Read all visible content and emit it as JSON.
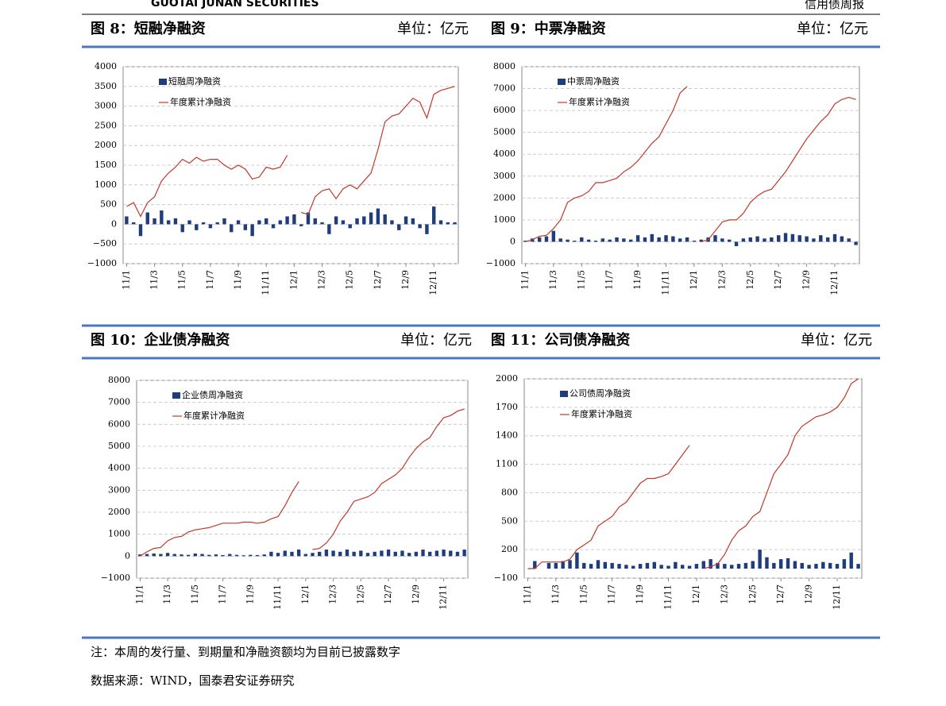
{
  "header": {
    "company": "GUOTAI JUNAN SECURITIES",
    "report": "信用债周报"
  },
  "chart_data": [
    {
      "type": "bar-line",
      "title": "图 8：短融净融资",
      "unit": "单位：亿元",
      "categories": [
        "11/1",
        null,
        null,
        null,
        "11/3",
        null,
        null,
        null,
        "11/5",
        null,
        null,
        null,
        "11/7",
        null,
        null,
        null,
        "11/9",
        null,
        null,
        null,
        "11/11",
        null,
        null,
        null,
        "12/1",
        null,
        null,
        null,
        "12/3",
        null,
        null,
        null,
        "12/5",
        null,
        null,
        null,
        "12/7",
        null,
        null,
        null,
        "12/9",
        null,
        null,
        null,
        "12/11",
        null,
        null,
        null
      ],
      "series": [
        {
          "name": "短融周净融资",
          "color": "#1f3d7a",
          "values": [
            200,
            50,
            -300,
            300,
            150,
            350,
            100,
            150,
            -200,
            100,
            -150,
            50,
            -100,
            50,
            150,
            -200,
            100,
            -150,
            -300,
            100,
            150,
            -100,
            100,
            200,
            250,
            -50,
            300,
            150,
            50,
            -250,
            200,
            100,
            -100,
            150,
            200,
            300,
            400,
            250,
            100,
            -150,
            200,
            150,
            -100,
            -250,
            450,
            100,
            50,
            50
          ]
        },
        {
          "name": "年度累计净融资",
          "color": "#c0392b",
          "values": [
            450,
            550,
            200,
            550,
            700,
            1100,
            1300,
            1450,
            1650,
            1550,
            1700,
            1600,
            1650,
            1650,
            1500,
            1400,
            1500,
            1400,
            1150,
            1200,
            1450,
            1400,
            1450,
            1750,
            null,
            300,
            250,
            700,
            850,
            900,
            650,
            900,
            1000,
            900,
            1100,
            1300,
            1900,
            2600,
            2750,
            2800,
            3000,
            3200,
            3100,
            2700,
            3300,
            3400,
            3450,
            3500
          ]
        }
      ],
      "ylim": [
        -1000,
        4000
      ],
      "yticks": [
        {
          "value": -1000,
          "label": "−1000"
        },
        {
          "value": -500,
          "label": "−500"
        },
        0,
        500,
        1000,
        1500,
        2000,
        2500,
        3000,
        3500,
        4000
      ],
      "grid": true
    },
    {
      "type": "bar-line",
      "title": "图 9：中票净融资",
      "unit": "单位：亿元",
      "categories": [
        "11/1",
        null,
        null,
        null,
        "11/3",
        null,
        null,
        null,
        "11/5",
        null,
        null,
        null,
        "11/7",
        null,
        null,
        null,
        "11/9",
        null,
        null,
        null,
        "11/11",
        null,
        null,
        null,
        "12/1",
        null,
        null,
        null,
        "12/3",
        null,
        null,
        null,
        "12/5",
        null,
        null,
        null,
        "12/7",
        null,
        null,
        null,
        "12/9",
        null,
        null,
        null,
        "12/11",
        null,
        null,
        null
      ],
      "series": [
        {
          "name": "中票周净融资",
          "color": "#1f3d7a",
          "values": [
            50,
            150,
            200,
            250,
            500,
            150,
            100,
            50,
            200,
            100,
            50,
            150,
            100,
            200,
            150,
            100,
            300,
            200,
            350,
            200,
            300,
            250,
            150,
            200,
            50,
            100,
            200,
            300,
            150,
            100,
            -200,
            150,
            200,
            250,
            150,
            200,
            300,
            400,
            350,
            300,
            250,
            150,
            300,
            200,
            350,
            250,
            150,
            -150
          ]
        },
        {
          "name": "年度累计净融资",
          "color": "#c0392b",
          "values": [
            0,
            100,
            250,
            300,
            600,
            1000,
            1800,
            2000,
            2100,
            2300,
            2700,
            2700,
            2800,
            2900,
            3200,
            3400,
            3700,
            4100,
            4500,
            4800,
            5400,
            6000,
            6800,
            7100,
            null,
            0,
            100,
            500,
            900,
            1000,
            1000,
            1300,
            1800,
            2100,
            2300,
            2400,
            2800,
            3200,
            3700,
            4200,
            4700,
            5100,
            5500,
            5800,
            6300,
            6500,
            6600,
            6500
          ]
        }
      ],
      "ylim": [
        -1000,
        8000
      ],
      "yticks": [
        {
          "value": -1000,
          "label": "−1000"
        },
        0,
        1000,
        2000,
        3000,
        4000,
        5000,
        6000,
        7000,
        8000
      ],
      "grid": true
    },
    {
      "type": "bar-line",
      "title": "图 10：企业债净融资",
      "unit": "单位：亿元",
      "categories": [
        "11/1",
        null,
        null,
        null,
        "11/3",
        null,
        null,
        null,
        "11/5",
        null,
        null,
        null,
        "11/7",
        null,
        null,
        null,
        "11/9",
        null,
        null,
        null,
        "11/11",
        null,
        null,
        null,
        "12/1",
        null,
        null,
        null,
        "12/3",
        null,
        null,
        null,
        "12/5",
        null,
        null,
        null,
        "12/7",
        null,
        null,
        null,
        "12/9",
        null,
        null,
        null,
        "12/11",
        null,
        null,
        null
      ],
      "series": [
        {
          "name": "企业债周净融资",
          "color": "#1f3d7a",
          "values": [
            80,
            100,
            120,
            100,
            150,
            100,
            80,
            60,
            120,
            100,
            60,
            80,
            50,
            100,
            60,
            40,
            60,
            50,
            80,
            200,
            150,
            250,
            200,
            300,
            100,
            150,
            200,
            300,
            250,
            200,
            300,
            200,
            250,
            150,
            200,
            250,
            300,
            200,
            250,
            150,
            200,
            300,
            200,
            250,
            300,
            250,
            200,
            300
          ]
        },
        {
          "name": "年度累计净融资",
          "color": "#c0392b",
          "values": [
            0,
            200,
            350,
            400,
            700,
            850,
            900,
            1100,
            1200,
            1250,
            1300,
            1400,
            1500,
            1500,
            1500,
            1550,
            1550,
            1500,
            1550,
            1700,
            1800,
            2300,
            2900,
            3400,
            null,
            300,
            350,
            600,
            1000,
            1600,
            2000,
            2500,
            2600,
            2700,
            2900,
            3300,
            3500,
            3700,
            4000,
            4500,
            4900,
            5200,
            5400,
            5900,
            6300,
            6400,
            6600,
            6700
          ]
        }
      ],
      "ylim": [
        -1000,
        8000
      ],
      "yticks": [
        {
          "value": -1000,
          "label": "−1000"
        },
        0,
        1000,
        2000,
        3000,
        4000,
        5000,
        6000,
        7000,
        8000
      ],
      "grid": true
    },
    {
      "type": "bar-line",
      "title": "图 11：公司债净融资",
      "unit": "单位：亿元",
      "categories": [
        "11/1",
        null,
        null,
        null,
        "11/3",
        null,
        null,
        null,
        "11/5",
        null,
        null,
        null,
        "11/7",
        null,
        null,
        null,
        "11/9",
        null,
        null,
        null,
        "11/11",
        null,
        null,
        null,
        "12/1",
        null,
        null,
        null,
        "12/3",
        null,
        null,
        null,
        "12/5",
        null,
        null,
        null,
        "12/7",
        null,
        null,
        null,
        "12/9",
        null,
        null,
        null,
        "12/11",
        null,
        null,
        null
      ],
      "series": [
        {
          "name": "公司债周净融资",
          "color": "#1f3d7a",
          "values": [
            0,
            80,
            0,
            60,
            60,
            80,
            90,
            170,
            60,
            50,
            90,
            70,
            60,
            50,
            40,
            30,
            50,
            60,
            70,
            40,
            30,
            70,
            40,
            30,
            50,
            80,
            100,
            60,
            50,
            40,
            50,
            60,
            80,
            200,
            120,
            60,
            100,
            110,
            80,
            60,
            40,
            50,
            70,
            60,
            50,
            100,
            170,
            50
          ]
        },
        {
          "name": "年度累计净融资",
          "color": "#c0392b",
          "values": [
            0,
            0,
            70,
            70,
            70,
            70,
            100,
            200,
            250,
            300,
            450,
            500,
            550,
            650,
            700,
            800,
            900,
            950,
            950,
            970,
            1000,
            1100,
            1200,
            1300,
            null,
            0,
            20,
            50,
            150,
            300,
            400,
            450,
            550,
            600,
            800,
            1000,
            1100,
            1200,
            1400,
            1500,
            1550,
            1600,
            1620,
            1650,
            1700,
            1800,
            1950,
            2000
          ]
        }
      ],
      "ylim": [
        -100,
        2000
      ],
      "yticks": [
        {
          "value": -100,
          "label": "−100"
        },
        200,
        500,
        800,
        1100,
        1400,
        1700,
        2000
      ],
      "grid": true
    }
  ],
  "notes": [
    "注：本周的发行量、到期量和净融资额均为目前已披露数字",
    "数据来源：WIND，国泰君安证券研究"
  ]
}
